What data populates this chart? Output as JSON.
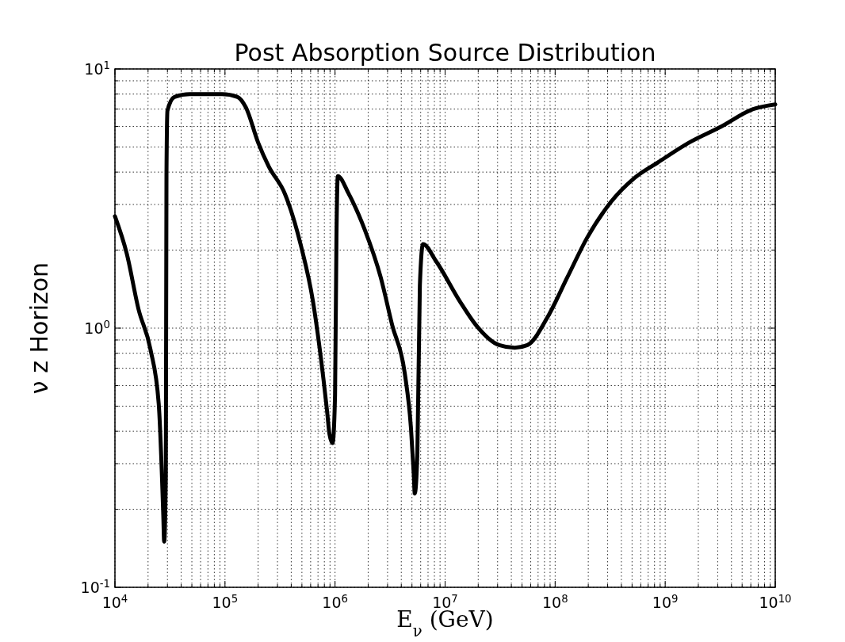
{
  "chart_data": {
    "type": "line",
    "title": "Post Absorption Source Distribution",
    "xlabel": "E$_{ν}$ (GeV)",
    "ylabel": "ν z Horizon",
    "log": "xy",
    "grid": true,
    "marker": "none",
    "line_style": "solid",
    "xlim": [
      10000,
      10000000000
    ],
    "ylim": [
      0.1,
      10
    ],
    "xticks": [
      {
        "value": 10000,
        "label": "10$^{4}$"
      },
      {
        "value": 20000,
        "label": null
      },
      {
        "value": 30000,
        "label": null
      },
      {
        "value": 40000,
        "label": null
      },
      {
        "value": 50000,
        "label": null
      },
      {
        "value": 60000,
        "label": null
      },
      {
        "value": 70000,
        "label": null
      },
      {
        "value": 80000,
        "label": null
      },
      {
        "value": 90000,
        "label": null
      },
      {
        "value": 100000,
        "label": "10$^{5}$"
      },
      {
        "value": 200000,
        "label": null
      },
      {
        "value": 300000,
        "label": null
      },
      {
        "value": 400000,
        "label": null
      },
      {
        "value": 500000,
        "label": null
      },
      {
        "value": 600000,
        "label": null
      },
      {
        "value": 700000,
        "label": null
      },
      {
        "value": 800000,
        "label": null
      },
      {
        "value": 900000,
        "label": null
      },
      {
        "value": 1000000,
        "label": "10$^{6}$"
      },
      {
        "value": 2000000,
        "label": null
      },
      {
        "value": 3000000,
        "label": null
      },
      {
        "value": 4000000,
        "label": null
      },
      {
        "value": 5000000,
        "label": null
      },
      {
        "value": 6000000,
        "label": null
      },
      {
        "value": 7000000,
        "label": null
      },
      {
        "value": 8000000,
        "label": null
      },
      {
        "value": 9000000,
        "label": null
      },
      {
        "value": 10000000,
        "label": "10$^{7}$"
      },
      {
        "value": 20000000,
        "label": null
      },
      {
        "value": 30000000,
        "label": null
      },
      {
        "value": 40000000,
        "label": null
      },
      {
        "value": 50000000,
        "label": null
      },
      {
        "value": 60000000,
        "label": null
      },
      {
        "value": 70000000,
        "label": null
      },
      {
        "value": 80000000,
        "label": null
      },
      {
        "value": 90000000,
        "label": null
      },
      {
        "value": 100000000,
        "label": "10$^{8}$"
      },
      {
        "value": 200000000,
        "label": null
      },
      {
        "value": 300000000,
        "label": null
      },
      {
        "value": 400000000,
        "label": null
      },
      {
        "value": 500000000,
        "label": null
      },
      {
        "value": 600000000,
        "label": null
      },
      {
        "value": 700000000,
        "label": null
      },
      {
        "value": 800000000,
        "label": null
      },
      {
        "value": 900000000,
        "label": null
      },
      {
        "value": 1000000000,
        "label": "10$^{9}$"
      },
      {
        "value": 2000000000,
        "label": null
      },
      {
        "value": 3000000000,
        "label": null
      },
      {
        "value": 4000000000,
        "label": null
      },
      {
        "value": 5000000000,
        "label": null
      },
      {
        "value": 6000000000,
        "label": null
      },
      {
        "value": 7000000000,
        "label": null
      },
      {
        "value": 8000000000,
        "label": null
      },
      {
        "value": 9000000000,
        "label": null
      },
      {
        "value": 10000000000,
        "label": "10$^{10}$"
      }
    ],
    "yticks": [
      {
        "value": 0.1,
        "label": "10$^{-1}$"
      },
      {
        "value": 0.2,
        "label": null
      },
      {
        "value": 0.3,
        "label": null
      },
      {
        "value": 0.4,
        "label": null
      },
      {
        "value": 0.5,
        "label": null
      },
      {
        "value": 0.6,
        "label": null
      },
      {
        "value": 0.7,
        "label": null
      },
      {
        "value": 0.8,
        "label": null
      },
      {
        "value": 0.9,
        "label": null
      },
      {
        "value": 1,
        "label": "10$^{0}$"
      },
      {
        "value": 2,
        "label": null
      },
      {
        "value": 3,
        "label": null
      },
      {
        "value": 4,
        "label": null
      },
      {
        "value": 5,
        "label": null
      },
      {
        "value": 6,
        "label": null
      },
      {
        "value": 7,
        "label": null
      },
      {
        "value": 8,
        "label": null
      },
      {
        "value": 9,
        "label": null
      },
      {
        "value": 10,
        "label": "10$^{1}$"
      }
    ],
    "series": [
      {
        "color": "#000000",
        "x": [
          10000,
          12800,
          16400,
          21000,
          25000,
          27500,
          28000,
          29000,
          29400,
          30000,
          34700,
          48000,
          94000,
          130000,
          155000,
          200000,
          250000,
          350000,
          490000,
          630000,
          740000,
          850000,
          890000,
          950000,
          1000000,
          1030000,
          1060000,
          1330000,
          1860000,
          2600000,
          3300000,
          4300000,
          4900000,
          5200000,
          5300000,
          5600000,
          5900000,
          6300000,
          8300000,
          13600000,
          19000000,
          31000000,
          43000000,
          56000000,
          85000000,
          129000000,
          195000000,
          320000000,
          520000000,
          860000000,
          1650000000,
          3200000000,
          6300000000,
          10000000000
        ],
        "values": [
          2.7,
          1.94,
          1.18,
          0.83,
          0.51,
          0.19,
          0.15,
          0.27,
          3.9,
          6.9,
          7.8,
          8.0,
          8.0,
          7.8,
          7.1,
          5.2,
          4.2,
          3.3,
          2.08,
          1.27,
          0.78,
          0.47,
          0.39,
          0.36,
          0.55,
          2.23,
          3.86,
          3.3,
          2.4,
          1.57,
          1.03,
          0.67,
          0.41,
          0.27,
          0.23,
          0.33,
          1.46,
          2.11,
          1.81,
          1.27,
          1.03,
          0.86,
          0.84,
          0.86,
          1.1,
          1.57,
          2.23,
          3.06,
          3.78,
          4.36,
          5.2,
          5.98,
          7.0,
          7.3
        ]
      }
    ]
  }
}
